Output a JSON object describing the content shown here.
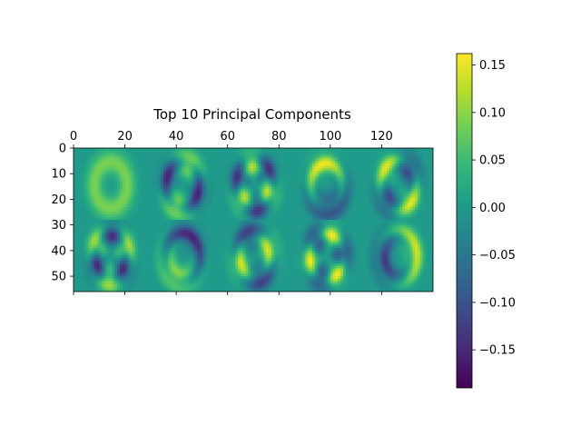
{
  "chart_data": {
    "type": "heatmap",
    "title": "Top 10 Principal Components",
    "grid": false,
    "image": {
      "columns": 140,
      "rows": 56,
      "panel_grid": {
        "rows": 2,
        "cols": 5
      },
      "background_value": 0.0,
      "cmap": "viridis",
      "value_range": [
        -0.19,
        0.162
      ]
    },
    "x_axis": {
      "position": "top",
      "range": [
        0,
        140
      ],
      "ticks": [
        0,
        20,
        40,
        60,
        80,
        100,
        120
      ],
      "tick_labels": [
        "0",
        "20",
        "40",
        "60",
        "80",
        "100",
        "120"
      ]
    },
    "y_axis": {
      "position": "left",
      "inverted": true,
      "range": [
        0,
        56
      ],
      "ticks": [
        0,
        10,
        20,
        30,
        40,
        50
      ],
      "tick_labels": [
        "0",
        "10",
        "20",
        "30",
        "40",
        "50"
      ]
    },
    "colorbar": {
      "range": [
        -0.19,
        0.162
      ],
      "ticks": [
        0.15,
        0.1,
        0.05,
        0.0,
        -0.05,
        -0.1,
        -0.15
      ],
      "tick_labels": [
        "0.15",
        "0.10",
        "0.05",
        "0.00",
        "−0.05",
        "−0.10",
        "−0.15"
      ]
    },
    "colors": {
      "viridis_stops": [
        "#440154",
        "#482878",
        "#3e4989",
        "#31688e",
        "#26828e",
        "#1f9e89",
        "#35b779",
        "#6ece58",
        "#b5de2b",
        "#fde725"
      ]
    }
  }
}
